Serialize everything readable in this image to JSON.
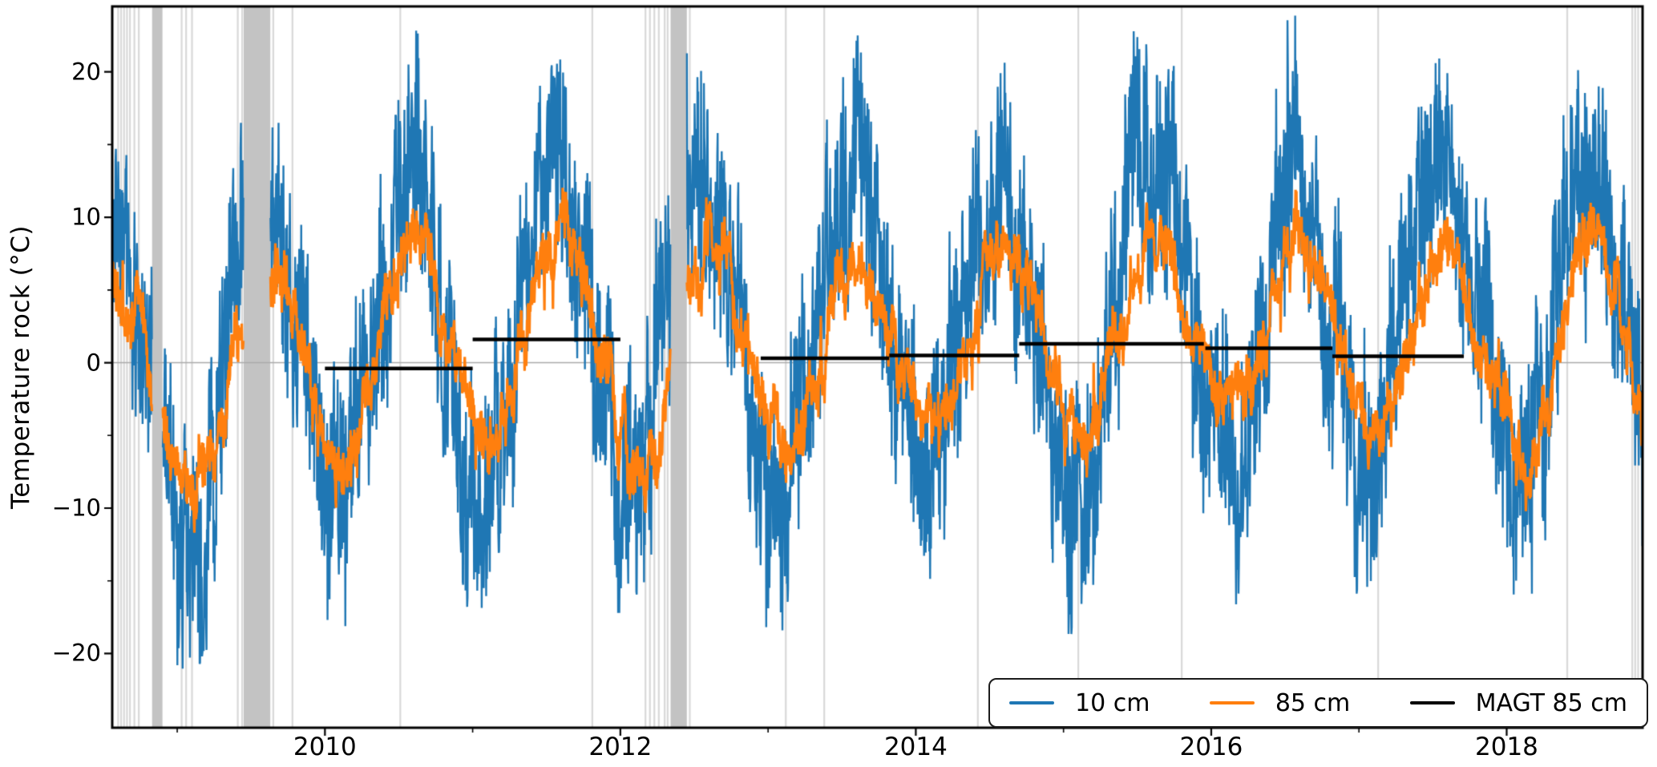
{
  "figure": {
    "background": "#ffffff"
  },
  "chart_data": {
    "type": "line",
    "title": "",
    "ylabel": "Temperature rock (°C)",
    "xlabel": "",
    "xlim": [
      2008.56,
      2018.92
    ],
    "ylim": [
      -25.1,
      24.5
    ],
    "grid": "horizontal zero line only",
    "zero_line_value": 0,
    "xticks": [
      {
        "year": 2010,
        "label": "2010"
      },
      {
        "year": 2012,
        "label": "2012"
      },
      {
        "year": 2014,
        "label": "2014"
      },
      {
        "year": 2016,
        "label": "2016"
      },
      {
        "year": 2018,
        "label": "2018"
      }
    ],
    "xticks_minor": [
      2009,
      2011,
      2013,
      2015,
      2017
    ],
    "yticks": [
      {
        "value": 20,
        "label": "20"
      },
      {
        "value": 10,
        "label": "10"
      },
      {
        "value": 0,
        "label": "0"
      },
      {
        "value": -10,
        "label": "−10"
      },
      {
        "value": -20,
        "label": "−20"
      }
    ],
    "yticks_minor": [
      15,
      5,
      -5,
      -15
    ],
    "series": [
      {
        "name": "10 cm",
        "color": "#1f77b4",
        "line_width": 2.4,
        "noise_amplitude": 6.5,
        "walk_amplitude": 1.1,
        "spike_amplitude": 4.5,
        "seasonal_mean_anchors": [
          [
            2008.55,
            10.0
          ],
          [
            2009.08,
            -13.0
          ],
          [
            2009.55,
            12.0
          ],
          [
            2010.08,
            -11.5
          ],
          [
            2010.55,
            13.0
          ],
          [
            2011.08,
            -9.5
          ],
          [
            2011.55,
            14.3
          ],
          [
            2012.08,
            -11.0
          ],
          [
            2012.55,
            13.3
          ],
          [
            2013.08,
            -9.3
          ],
          [
            2013.55,
            12.5
          ],
          [
            2014.08,
            -6.5
          ],
          [
            2014.55,
            12.7
          ],
          [
            2015.08,
            -10.5
          ],
          [
            2015.55,
            13.9
          ],
          [
            2016.08,
            -6.0
          ],
          [
            2016.55,
            13.3
          ],
          [
            2017.08,
            -7.5
          ],
          [
            2017.55,
            13.9
          ],
          [
            2018.08,
            -9.5
          ],
          [
            2018.55,
            14.2
          ],
          [
            2019.08,
            -10.0
          ]
        ],
        "observed_extremes": {
          "summer_max_by_year": {
            "2009": 19.0,
            "2010": 20.5,
            "2011": 22.3,
            "2012": 20.8,
            "2013": 19.5,
            "2014": 19.7,
            "2015": 21.4,
            "2016": 20.3,
            "2017": 20.9,
            "2018": 21.7
          },
          "winter_min_by_year": {
            "2009": -20.7,
            "2010": -18.5,
            "2011": -16.2,
            "2012": -18.0,
            "2013": -16.3,
            "2014": -11.5,
            "2015": -17.5,
            "2016": -11.0,
            "2017": -13.0,
            "2018": -16.0
          }
        }
      },
      {
        "name": "85 cm",
        "color": "#ff7f0e",
        "line_width": 3.2,
        "noise_amplitude": 1.3,
        "walk_amplitude": 0.55,
        "spike_amplitude": 2.0,
        "seasonal_mean_anchors": [
          [
            2008.55,
            5.5
          ],
          [
            2009.12,
            -8.5
          ],
          [
            2009.6,
            7.8
          ],
          [
            2010.12,
            -6.5
          ],
          [
            2010.6,
            8.2
          ],
          [
            2011.12,
            -6.0
          ],
          [
            2011.6,
            8.7
          ],
          [
            2012.12,
            -6.5
          ],
          [
            2012.6,
            8.0
          ],
          [
            2013.12,
            -5.5
          ],
          [
            2013.6,
            7.6
          ],
          [
            2014.12,
            -5.0
          ],
          [
            2014.6,
            7.9
          ],
          [
            2015.12,
            -5.5
          ],
          [
            2015.6,
            8.6
          ],
          [
            2016.12,
            -4.0
          ],
          [
            2016.6,
            7.7
          ],
          [
            2017.12,
            -4.5
          ],
          [
            2017.6,
            7.9
          ],
          [
            2018.12,
            -6.0
          ],
          [
            2018.6,
            8.4
          ],
          [
            2019.12,
            -7.0
          ]
        ],
        "observed_extremes": {
          "summer_max_by_year": {
            "2009": 9.3,
            "2010": 9.8,
            "2011": 10.2,
            "2012": 9.5,
            "2013": 9.1,
            "2014": 9.4,
            "2015": 10.1,
            "2016": 9.2,
            "2017": 9.4,
            "2018": 9.9
          },
          "winter_min_by_year": {
            "2009": -12.0,
            "2010": -8.5,
            "2011": -8.0,
            "2012": -8.5,
            "2013": -7.5,
            "2014": -6.5,
            "2015": -7.0,
            "2016": -5.5,
            "2017": -6.0,
            "2018": -7.5
          }
        }
      }
    ],
    "magt": {
      "name": "MAGT 85 cm",
      "color": "#000000",
      "line_width": 4.5,
      "segments": [
        {
          "start": 2010.0,
          "end": 2011.0,
          "value": -0.4
        },
        {
          "start": 2011.0,
          "end": 2012.0,
          "value": 1.6
        },
        {
          "start": 2012.95,
          "end": 2013.82,
          "value": 0.3
        },
        {
          "start": 2013.82,
          "end": 2014.7,
          "value": 0.5
        },
        {
          "start": 2014.7,
          "end": 2015.95,
          "value": 1.3
        },
        {
          "start": 2015.96,
          "end": 2016.82,
          "value": 1.0
        },
        {
          "start": 2016.82,
          "end": 2017.71,
          "value": 0.45
        }
      ]
    },
    "gaps": {
      "wide_color": "#c3c3c3",
      "thin_color": "#d9d9d9",
      "wide": [
        [
          2008.83,
          2008.9
        ],
        [
          2009.45,
          2009.63
        ],
        [
          2012.34,
          2012.45
        ]
      ],
      "thin": [
        2008.6,
        2008.62,
        2008.64,
        2008.66,
        2008.68,
        2008.71,
        2008.74,
        2009.03,
        2009.06,
        2009.1,
        2009.41,
        2009.44,
        2009.65,
        2009.78,
        2010.51,
        2011.81,
        2012.17,
        2012.2,
        2012.23,
        2012.26,
        2012.3,
        2012.32,
        2012.47,
        2013.12,
        2013.38,
        2014.42,
        2015.1,
        2015.8,
        2017.13,
        2018.41,
        2018.85,
        2018.87,
        2018.89
      ]
    },
    "zero_line_color": "#aaaaaa",
    "legend": {
      "position": "lower right",
      "entries": [
        "10 cm",
        "85 cm",
        "MAGT 85 cm"
      ]
    }
  }
}
